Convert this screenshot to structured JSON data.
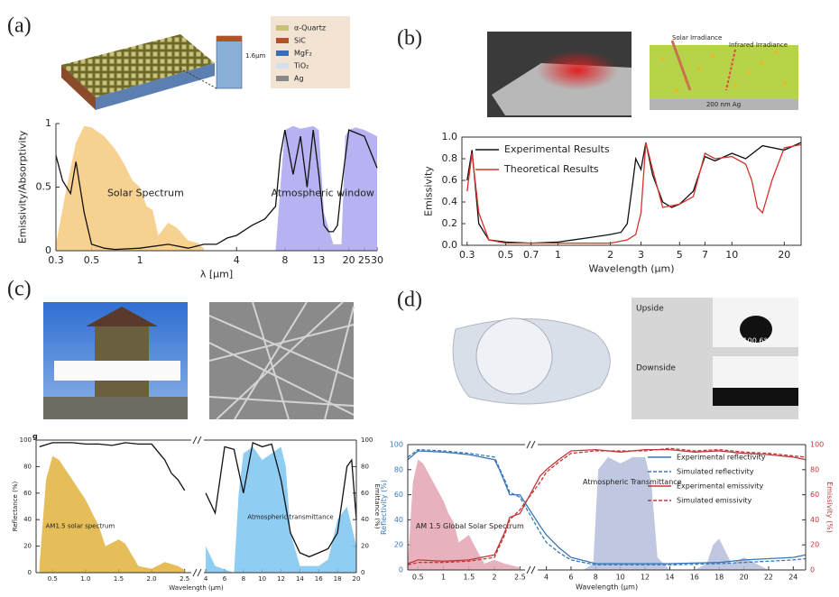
{
  "panels": [
    {
      "label": "(a)",
      "texts": [
        "α-Quartz",
        "SiC",
        "MgF₂",
        "TiO₂",
        "Ag",
        "1.6μm"
      ]
    },
    {
      "label": "(b)",
      "texts": [
        "Solar Irradiance",
        "Infrared Irradiance",
        "200 nm Ag"
      ]
    },
    {
      "label": "(c)",
      "texts": [
        "g"
      ]
    },
    {
      "label": "(d)",
      "texts": [
        "Upside",
        "Downside",
        "100.6°"
      ]
    }
  ],
  "chart_data": [
    {
      "type": "line",
      "xscale": "log",
      "xlabel": "λ [μm]",
      "ylabel": "Emissivity/Absorptivity",
      "xlim": [
        0.3,
        30
      ],
      "xticks": [
        0.3,
        0.5,
        1,
        4,
        8,
        13,
        20,
        25,
        30
      ],
      "ylim": [
        0,
        1
      ],
      "yticks": [
        0,
        0.5,
        1
      ],
      "series": [
        {
          "name": "Solar Spectrum",
          "color": "#f5c97c",
          "area": true,
          "x": [
            0.3,
            0.35,
            0.4,
            0.45,
            0.5,
            0.6,
            0.7,
            0.8,
            0.9,
            1.0,
            1.1,
            1.2,
            1.3,
            1.5,
            1.7,
            2.0,
            2.3,
            2.5
          ],
          "values": [
            0.05,
            0.5,
            0.85,
            0.98,
            0.97,
            0.9,
            0.8,
            0.68,
            0.55,
            0.5,
            0.35,
            0.32,
            0.12,
            0.22,
            0.18,
            0.08,
            0.06,
            0.02
          ]
        },
        {
          "name": "Atmospheric window",
          "color": "#aaa4ee",
          "area": true,
          "x": [
            7,
            7.5,
            8,
            9,
            10,
            11,
            12,
            13,
            14,
            16,
            18,
            19,
            20,
            22,
            25,
            30
          ],
          "values": [
            0,
            0.5,
            0.95,
            0.98,
            0.96,
            0.97,
            0.98,
            0.95,
            0.3,
            0.05,
            0.05,
            0.9,
            0.95,
            0.97,
            0.95,
            0.9
          ]
        },
        {
          "color": "#111111",
          "x": [
            0.3,
            0.33,
            0.37,
            0.4,
            0.45,
            0.5,
            0.6,
            0.7,
            1,
            1.5,
            2,
            2.5,
            3,
            3.5,
            4,
            5,
            6,
            7,
            7.5,
            8,
            9,
            10,
            11,
            12,
            13,
            14,
            15,
            16,
            17,
            18,
            20,
            25,
            30
          ],
          "values": [
            0.75,
            0.55,
            0.45,
            0.7,
            0.3,
            0.05,
            0.02,
            0.01,
            0.02,
            0.05,
            0.02,
            0.05,
            0.05,
            0.1,
            0.12,
            0.2,
            0.25,
            0.35,
            0.75,
            0.95,
            0.6,
            0.9,
            0.5,
            0.95,
            0.6,
            0.2,
            0.15,
            0.15,
            0.2,
            0.5,
            0.95,
            0.9,
            0.65
          ]
        }
      ]
    },
    {
      "type": "line",
      "xscale": "log",
      "xlabel": "Wavelength (μm)",
      "ylabel": "Emissivity",
      "legend": "upper left",
      "xlim": [
        0.28,
        25
      ],
      "xticks": [
        0.3,
        0.5,
        0.7,
        1,
        2,
        3,
        5,
        7,
        10,
        20
      ],
      "ylim": [
        0,
        1
      ],
      "yticks": [
        {
          "value": 0,
          "label": "0.0"
        },
        0.2,
        0.4,
        0.6,
        0.8,
        {
          "value": 1,
          "label": "1.0"
        }
      ],
      "series": [
        {
          "name": "Experimental Results",
          "color": "#111111",
          "x": [
            0.3,
            0.32,
            0.35,
            0.4,
            0.5,
            0.7,
            1,
            1.5,
            2,
            2.3,
            2.5,
            2.7,
            2.8,
            3,
            3.2,
            3.5,
            4,
            4.5,
            5,
            6,
            7,
            8,
            10,
            12,
            15,
            20,
            25
          ],
          "values": [
            0.6,
            0.88,
            0.2,
            0.05,
            0.03,
            0.02,
            0.03,
            0.07,
            0.1,
            0.12,
            0.2,
            0.6,
            0.8,
            0.7,
            0.95,
            0.65,
            0.4,
            0.35,
            0.38,
            0.5,
            0.82,
            0.78,
            0.85,
            0.8,
            0.92,
            0.88,
            0.95
          ]
        },
        {
          "name": "Theoretical Results",
          "color": "#d9302c",
          "x": [
            0.3,
            0.32,
            0.35,
            0.4,
            0.5,
            0.7,
            1,
            2,
            2.5,
            2.8,
            3,
            3.2,
            3.5,
            4,
            5,
            6,
            7,
            8,
            10,
            12,
            13,
            14,
            15,
            17,
            20,
            25
          ],
          "values": [
            0.5,
            0.85,
            0.3,
            0.05,
            0.02,
            0.02,
            0.02,
            0.02,
            0.05,
            0.1,
            0.3,
            0.95,
            0.7,
            0.35,
            0.38,
            0.45,
            0.85,
            0.8,
            0.82,
            0.75,
            0.6,
            0.35,
            0.3,
            0.6,
            0.9,
            0.93
          ]
        }
      ]
    },
    {
      "type": "line",
      "xlabel": "Wavelength (μm)",
      "ylabel": "Reflectance (%)",
      "y2label": "Emittance (%)",
      "xsegments": [
        {
          "xlim": [
            0.25,
            2.6
          ],
          "xticks": [
            0.5,
            {
              "value": 1,
              "label": "1.0"
            },
            1.5,
            {
              "value": 2,
              "label": "2.0"
            },
            2.5
          ]
        },
        {
          "xlim": [
            3.8,
            20
          ],
          "xticks": [
            4,
            6,
            8,
            10,
            12,
            14,
            16,
            18,
            20
          ]
        }
      ],
      "ylim": [
        0,
        100
      ],
      "yticks": [
        0,
        20,
        40,
        60,
        80,
        100
      ],
      "y2lim": [
        0,
        100
      ],
      "y2ticks": [
        0,
        20,
        40,
        60,
        80,
        100
      ],
      "series": [
        {
          "name": "AM1.5 solar spectrum",
          "color": "#e2b33c",
          "area": true,
          "x": [
            0.3,
            0.4,
            0.5,
            0.6,
            0.8,
            1.0,
            1.1,
            1.2,
            1.3,
            1.5,
            1.6,
            1.8,
            2.0,
            2.2,
            2.4,
            2.5
          ],
          "values": [
            5,
            70,
            88,
            85,
            70,
            55,
            45,
            35,
            20,
            25,
            22,
            5,
            3,
            8,
            5,
            2
          ]
        },
        {
          "name": "Atmospheric transmittance",
          "color": "#7cc4f0",
          "area": true,
          "axis": "y2",
          "x": [
            4,
            5,
            7,
            7.5,
            8,
            9,
            10,
            11,
            12,
            12.5,
            13,
            14,
            16,
            17,
            18,
            19,
            20
          ],
          "values": [
            20,
            5,
            0,
            60,
            90,
            95,
            85,
            90,
            95,
            80,
            30,
            5,
            5,
            10,
            40,
            50,
            20
          ]
        },
        {
          "color": "#111111",
          "x": [
            0.3,
            0.5,
            0.8,
            1.0,
            1.2,
            1.4,
            1.6,
            1.8,
            2.0,
            2.2,
            2.3,
            2.4,
            2.5
          ],
          "values": [
            95,
            98,
            98,
            97,
            97,
            96,
            98,
            97,
            97,
            85,
            75,
            70,
            62
          ]
        },
        {
          "color": "#111111",
          "axis": "y2",
          "x": [
            4,
            5,
            6,
            7,
            8,
            9,
            10,
            11,
            12,
            13,
            14,
            15,
            16,
            17,
            18,
            19,
            19.5,
            20
          ],
          "values": [
            60,
            45,
            95,
            93,
            60,
            98,
            95,
            97,
            70,
            30,
            15,
            12,
            15,
            18,
            30,
            80,
            85,
            40
          ]
        }
      ]
    },
    {
      "type": "line",
      "xlabel": "Wavelength (μm)",
      "ylabel": "Reflectivity (%)",
      "y2label": "Emissivity (%)",
      "y_color": "#3a78b8",
      "y2_color": "#c0393b",
      "legend": "upper right",
      "xsegments": [
        {
          "xlim": [
            0.3,
            2.6
          ],
          "xticks": [
            0.5,
            1,
            1.5,
            2,
            2.5
          ]
        },
        {
          "xlim": [
            3.3,
            25
          ],
          "xticks": [
            4,
            6,
            8,
            10,
            12,
            14,
            16,
            18,
            20,
            22,
            24
          ]
        }
      ],
      "ylim": [
        0,
        100
      ],
      "yticks": [
        0,
        20,
        40,
        60,
        80,
        100
      ],
      "y2lim": [
        0,
        100
      ],
      "y2ticks": [
        0,
        20,
        40,
        60,
        80,
        100
      ],
      "series": [
        {
          "name": "AM 1.5 Global Solar Spectrum",
          "color": "#e4a3b3",
          "area": true,
          "x": [
            0.3,
            0.4,
            0.5,
            0.6,
            0.8,
            1.0,
            1.1,
            1.2,
            1.3,
            1.5,
            1.6,
            1.8,
            2.0,
            2.2,
            2.5
          ],
          "values": [
            5,
            70,
            88,
            85,
            70,
            55,
            45,
            38,
            22,
            28,
            20,
            5,
            8,
            5,
            2
          ]
        },
        {
          "name": "Atmospheric Transmittance",
          "color": "#b4bedb",
          "area": true,
          "x": [
            3.5,
            5,
            7,
            7.8,
            8.2,
            9,
            10,
            11,
            12,
            12.5,
            13,
            14,
            16,
            17,
            17.5,
            18,
            19,
            20,
            22,
            25
          ],
          "values": [
            0,
            0,
            0,
            5,
            80,
            90,
            85,
            90,
            90,
            70,
            10,
            0,
            0,
            5,
            20,
            25,
            5,
            10,
            0,
            0
          ]
        },
        {
          "name": "Experimental reflectivity",
          "color": "#3a78b8",
          "x": [
            0.3,
            0.5,
            1,
            1.5,
            2,
            2.1,
            2.2,
            2.3,
            2.5,
            3.5,
            4,
            5,
            6,
            8,
            10,
            14,
            18,
            20,
            24,
            25
          ],
          "values": [
            88,
            95,
            94,
            92,
            88,
            80,
            70,
            60,
            60,
            35,
            28,
            18,
            10,
            5,
            5,
            5,
            6,
            8,
            10,
            12
          ]
        },
        {
          "name": "Simulated reflectivity",
          "color": "#3a78b8",
          "dash": true,
          "x": [
            0.3,
            0.5,
            1,
            1.5,
            2,
            2.2,
            2.3,
            2.5,
            3.5,
            4,
            5,
            6,
            8,
            10,
            14,
            18,
            20,
            24,
            25
          ],
          "values": [
            90,
            96,
            95,
            93,
            90,
            72,
            62,
            58,
            30,
            22,
            14,
            8,
            4,
            4,
            4,
            5,
            6,
            8,
            9
          ]
        },
        {
          "name": "Experimental emissivity",
          "color": "#c0393b",
          "axis": "y2",
          "x": [
            0.3,
            0.5,
            1,
            1.5,
            2,
            2.2,
            2.3,
            2.5,
            3.5,
            4,
            5,
            6,
            8,
            10,
            12,
            14,
            16,
            18,
            20,
            22,
            24,
            25
          ],
          "values": [
            5,
            8,
            7,
            8,
            12,
            30,
            42,
            45,
            75,
            80,
            88,
            95,
            96,
            94,
            96,
            96,
            94,
            95,
            93,
            92,
            90,
            88
          ]
        },
        {
          "name": "Simulated emissivity",
          "color": "#c0393b",
          "dash": true,
          "axis": "y2",
          "x": [
            0.3,
            0.5,
            1,
            1.5,
            2,
            2.2,
            2.3,
            2.5,
            3.5,
            4,
            5,
            6,
            8,
            10,
            12,
            14,
            16,
            18,
            20,
            22,
            24,
            25
          ],
          "values": [
            4,
            6,
            6,
            7,
            10,
            28,
            40,
            48,
            70,
            78,
            86,
            93,
            95,
            95,
            95,
            97,
            95,
            96,
            94,
            93,
            91,
            90
          ]
        }
      ]
    }
  ]
}
